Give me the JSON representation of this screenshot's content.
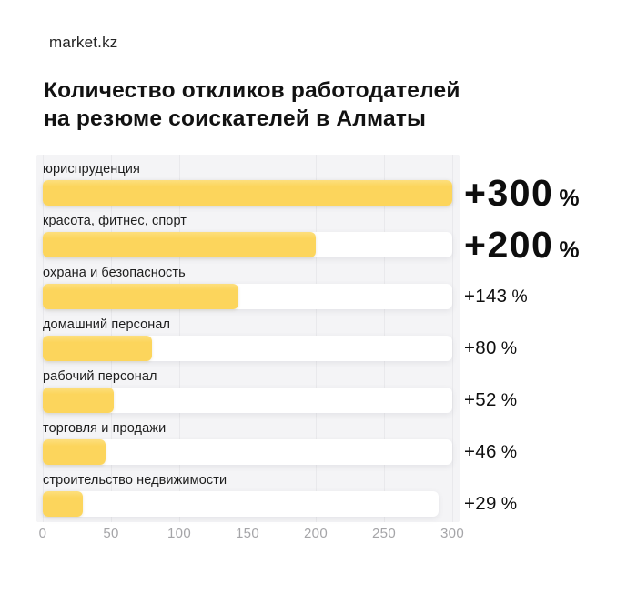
{
  "brand": "market.kz",
  "title_line1": "Количество откликов работодателей",
  "title_line2": "на резюме соискателей в Алматы",
  "colors": {
    "bar": "#FCD65E",
    "bar_highlight": "#FDDF7D",
    "track": "#FFFFFF",
    "plot_background": "#F4F4F6",
    "gridline": "#E9E9EC",
    "axis_text": "#A5A5A8",
    "text": "#141414"
  },
  "chart_data": {
    "type": "bar",
    "orientation": "horizontal",
    "title": "Количество откликов работодателей на резюме соискателей в Алматы",
    "xlabel": "",
    "ylabel": "",
    "xlim": [
      0,
      300
    ],
    "x_ticks": [
      0,
      50,
      100,
      150,
      200,
      250,
      300
    ],
    "grid": true,
    "categories": [
      "юриспруденция",
      "красота, фитнес, спорт",
      "охрана и безопасность",
      "домашний персонал",
      "рабочий персонал",
      "торговля и продажи",
      "строительство недвижимости"
    ],
    "values": [
      300,
      200,
      143,
      80,
      52,
      46,
      29
    ],
    "value_labels": [
      "+300 %",
      "+200 %",
      "+143 %",
      "+80 %",
      "+52 %",
      "+46 %",
      "+29 %"
    ],
    "rows": [
      {
        "label": "юриспруденция",
        "value": 300,
        "display": "+300",
        "unit": "%",
        "emphasis": true,
        "track_max": 300
      },
      {
        "label": "красота, фитнес, спорт",
        "value": 200,
        "display": "+200",
        "unit": "%",
        "emphasis": true,
        "track_max": 300
      },
      {
        "label": "охрана и безопасность",
        "value": 143,
        "display": "+143",
        "unit": "%",
        "emphasis": false,
        "track_max": 300
      },
      {
        "label": "домашний персонал",
        "value": 80,
        "display": "+80",
        "unit": "%",
        "emphasis": false,
        "track_max": 300
      },
      {
        "label": "рабочий персонал",
        "value": 52,
        "display": "+52",
        "unit": "%",
        "emphasis": false,
        "track_max": 300
      },
      {
        "label": "торговля и продажи",
        "value": 46,
        "display": "+46",
        "unit": "%",
        "emphasis": false,
        "track_max": 300
      },
      {
        "label": "строительство недвижимости",
        "value": 29,
        "display": "+29",
        "unit": "%",
        "emphasis": false,
        "track_max": 290
      }
    ]
  }
}
